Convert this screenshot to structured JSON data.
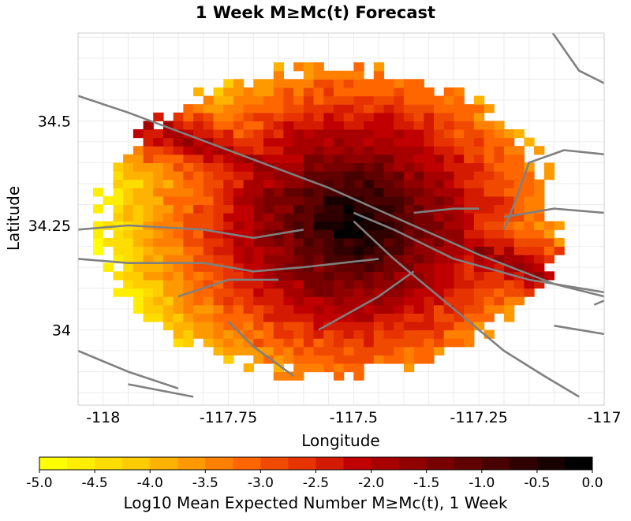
{
  "chart_data": {
    "type": "heatmap",
    "title": "1 Week M≥Mc(t) Forecast",
    "xlabel": "Longitude",
    "ylabel": "Latitude",
    "xlim": [
      -118.05,
      -117.0
    ],
    "ylim": [
      33.82,
      34.71
    ],
    "x_ticks": [
      -118,
      -117.75,
      -117.5,
      -117.25,
      -117
    ],
    "x_tick_labels": [
      "-118",
      "-117.75",
      "-117.5",
      "-117.25",
      "-117"
    ],
    "y_ticks": [
      34.0,
      34.25,
      34.5
    ],
    "y_tick_labels": [
      "34",
      "34.25",
      "34.5"
    ],
    "grid": true,
    "legend": "colorbar-bottom",
    "colorbar": {
      "label": "Log10 Mean Expected Number M≥Mc(t), 1 Week",
      "min": -5.0,
      "max": 0.0,
      "ticks": [
        -5.0,
        -4.5,
        -4.0,
        -3.5,
        -3.0,
        -2.5,
        -2.0,
        -1.5,
        -1.0,
        -0.5,
        0.0
      ],
      "tick_labels": [
        "-5.0",
        "-4.5",
        "-4.0",
        "-3.5",
        "-3.0",
        "-2.5",
        "-2.0",
        "-1.5",
        "-1.0",
        "-0.5",
        "0.0"
      ],
      "colors": [
        "#ffff00",
        "#ffee00",
        "#ffdd00",
        "#ffcc00",
        "#ffb300",
        "#ff9900",
        "#ff7f00",
        "#ff6600",
        "#f04a00",
        "#e63300",
        "#d41a00",
        "#c00000",
        "#a80000",
        "#900000",
        "#780000",
        "#600000",
        "#480000",
        "#300000",
        "#180000",
        "#000000"
      ]
    },
    "forecast_region": {
      "center": [
        -117.55,
        34.26
      ],
      "radius_deg_lon": 0.47,
      "radius_deg_lat": 0.38,
      "cell_size_deg": 0.02
    },
    "hotspot_peak": {
      "lon": -117.5,
      "lat": 34.26,
      "log10_rate": -0.1
    },
    "fault_traces": [
      {
        "name": "",
        "points": [
          [
            -118.05,
            34.56
          ],
          [
            -117.95,
            34.52
          ],
          [
            -117.75,
            34.43
          ],
          [
            -117.55,
            34.34
          ],
          [
            -117.4,
            34.26
          ],
          [
            -117.25,
            34.18
          ],
          [
            -117.1,
            34.11
          ],
          [
            -117.0,
            34.08
          ]
        ]
      },
      {
        "name": "",
        "points": [
          [
            -117.5,
            34.26
          ],
          [
            -117.42,
            34.17
          ],
          [
            -117.3,
            34.05
          ],
          [
            -117.2,
            33.95
          ],
          [
            -117.12,
            33.89
          ],
          [
            -117.05,
            33.84
          ]
        ]
      },
      {
        "name": "",
        "points": [
          [
            -117.5,
            34.28
          ],
          [
            -117.42,
            34.24
          ],
          [
            -117.3,
            34.17
          ],
          [
            -117.15,
            34.12
          ],
          [
            -117.0,
            34.09
          ]
        ]
      },
      {
        "name": "",
        "points": [
          [
            -118.05,
            34.24
          ],
          [
            -117.95,
            34.25
          ],
          [
            -117.8,
            34.24
          ],
          [
            -117.7,
            34.22
          ],
          [
            -117.6,
            34.24
          ]
        ]
      },
      {
        "name": "",
        "points": [
          [
            -118.05,
            34.17
          ],
          [
            -117.95,
            34.16
          ],
          [
            -117.8,
            34.16
          ],
          [
            -117.7,
            34.14
          ],
          [
            -117.6,
            34.15
          ],
          [
            -117.45,
            34.17
          ]
        ]
      },
      {
        "name": "",
        "points": [
          [
            -117.57,
            34.0
          ],
          [
            -117.45,
            34.08
          ],
          [
            -117.38,
            34.14
          ]
        ]
      },
      {
        "name": "",
        "points": [
          [
            -117.38,
            34.28
          ],
          [
            -117.3,
            34.29
          ],
          [
            -117.25,
            34.29
          ]
        ]
      },
      {
        "name": "",
        "points": [
          [
            -117.2,
            34.24
          ],
          [
            -117.18,
            34.3
          ],
          [
            -117.15,
            34.4
          ],
          [
            -117.08,
            34.43
          ],
          [
            -117.0,
            34.42
          ]
        ]
      },
      {
        "name": "",
        "points": [
          [
            -117.2,
            34.27
          ],
          [
            -117.1,
            34.29
          ],
          [
            -117.0,
            34.28
          ]
        ]
      },
      {
        "name": "",
        "points": [
          [
            -117.12,
            34.74
          ],
          [
            -117.05,
            34.62
          ],
          [
            -117.0,
            34.59
          ]
        ]
      },
      {
        "name": "",
        "points": [
          [
            -118.05,
            33.95
          ],
          [
            -117.95,
            33.9
          ],
          [
            -117.85,
            33.86
          ]
        ]
      },
      {
        "name": "",
        "points": [
          [
            -117.85,
            34.08
          ],
          [
            -117.75,
            34.12
          ],
          [
            -117.65,
            34.12
          ]
        ]
      },
      {
        "name": "",
        "points": [
          [
            -117.75,
            34.02
          ],
          [
            -117.7,
            33.96
          ],
          [
            -117.62,
            33.89
          ]
        ]
      },
      {
        "name": "",
        "points": [
          [
            -117.95,
            33.87
          ],
          [
            -117.82,
            33.84
          ]
        ]
      },
      {
        "name": "",
        "points": [
          [
            -117.1,
            34.01
          ],
          [
            -117.0,
            33.99
          ]
        ]
      },
      {
        "name": "",
        "points": [
          [
            -117.0,
            34.07
          ],
          [
            -117.02,
            34.06
          ]
        ]
      }
    ]
  }
}
